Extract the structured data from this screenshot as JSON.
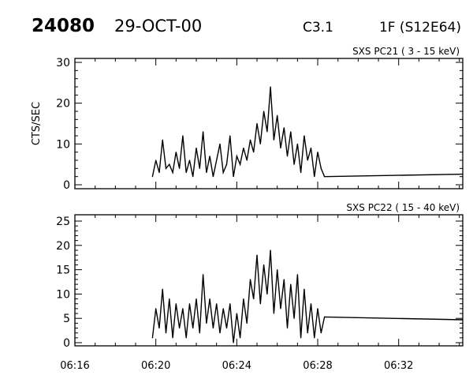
{
  "header": {
    "id": "24080",
    "date": "29-OCT-00",
    "class": "C3.1",
    "location": "1F (S12E64)"
  },
  "chart_data": [
    {
      "type": "line",
      "title": "SXS PC21  (  3 - 15 keV)",
      "ylabel": "CTS/SEC",
      "xlabel": "",
      "ylim": [
        0,
        30
      ],
      "yticks": [
        "0",
        "10",
        "20",
        "30"
      ],
      "xlim": [
        "06:16:00",
        "06:35:10"
      ],
      "xticks": [
        "06:16",
        "06:20",
        "06:24",
        "06:28",
        "06:32"
      ],
      "grid": false,
      "x": [
        "06:19:50",
        "06:20:00",
        "06:20:10",
        "06:20:20",
        "06:20:30",
        "06:20:40",
        "06:20:50",
        "06:21:00",
        "06:21:10",
        "06:21:20",
        "06:21:30",
        "06:21:40",
        "06:21:50",
        "06:22:00",
        "06:22:10",
        "06:22:20",
        "06:22:30",
        "06:22:40",
        "06:22:50",
        "06:23:00",
        "06:23:10",
        "06:23:20",
        "06:23:30",
        "06:23:40",
        "06:23:50",
        "06:24:00",
        "06:24:10",
        "06:24:20",
        "06:24:30",
        "06:24:40",
        "06:24:50",
        "06:25:00",
        "06:25:10",
        "06:25:20",
        "06:25:30",
        "06:25:40",
        "06:25:50",
        "06:26:00",
        "06:26:10",
        "06:26:20",
        "06:26:30",
        "06:26:40",
        "06:26:50",
        "06:27:00",
        "06:27:10",
        "06:27:20",
        "06:27:30",
        "06:27:40",
        "06:27:50",
        "06:28:00",
        "06:28:10",
        "06:28:20",
        "06:35:10"
      ],
      "values": [
        2,
        6,
        3,
        11,
        4,
        5,
        3,
        8,
        4,
        12,
        3,
        6,
        2,
        9,
        4,
        13,
        3,
        7,
        2,
        6,
        10,
        3,
        5,
        12,
        2,
        7,
        5,
        9,
        6,
        11,
        8,
        15,
        10,
        18,
        13,
        24,
        11,
        17,
        9,
        14,
        7,
        13,
        5,
        10,
        3,
        12,
        6,
        9,
        2,
        8,
        4,
        2.0,
        2.6
      ]
    },
    {
      "type": "line",
      "title": "SXS PC22  ( 15 - 40 keV)",
      "ylabel": "",
      "xlabel": "",
      "ylim": [
        0,
        25
      ],
      "yticks": [
        "0",
        "5",
        "10",
        "15",
        "20",
        "25"
      ],
      "xlim": [
        "06:16:00",
        "06:35:10"
      ],
      "xticks": [
        "06:16",
        "06:20",
        "06:24",
        "06:28",
        "06:32"
      ],
      "grid": false,
      "x": [
        "06:19:50",
        "06:20:00",
        "06:20:10",
        "06:20:20",
        "06:20:30",
        "06:20:40",
        "06:20:50",
        "06:21:00",
        "06:21:10",
        "06:21:20",
        "06:21:30",
        "06:21:40",
        "06:21:50",
        "06:22:00",
        "06:22:10",
        "06:22:20",
        "06:22:30",
        "06:22:40",
        "06:22:50",
        "06:23:00",
        "06:23:10",
        "06:23:20",
        "06:23:30",
        "06:23:40",
        "06:23:50",
        "06:24:00",
        "06:24:10",
        "06:24:20",
        "06:24:30",
        "06:24:40",
        "06:24:50",
        "06:25:00",
        "06:25:10",
        "06:25:20",
        "06:25:30",
        "06:25:40",
        "06:25:50",
        "06:26:00",
        "06:26:10",
        "06:26:20",
        "06:26:30",
        "06:26:40",
        "06:26:50",
        "06:27:00",
        "06:27:10",
        "06:27:20",
        "06:27:30",
        "06:27:40",
        "06:27:50",
        "06:28:00",
        "06:28:10",
        "06:28:20",
        "06:35:10"
      ],
      "values": [
        1,
        7,
        3,
        11,
        2,
        9,
        1,
        8,
        3,
        7,
        1,
        8,
        3,
        9,
        2,
        14,
        4,
        9,
        3,
        8,
        2,
        7,
        3,
        8,
        0,
        6,
        1,
        9,
        4,
        13,
        9,
        18,
        8,
        16,
        10,
        19,
        6,
        15,
        7,
        13,
        3,
        12,
        5,
        14,
        1,
        11,
        2,
        8,
        1,
        7,
        2,
        5.3,
        4.7
      ]
    }
  ]
}
